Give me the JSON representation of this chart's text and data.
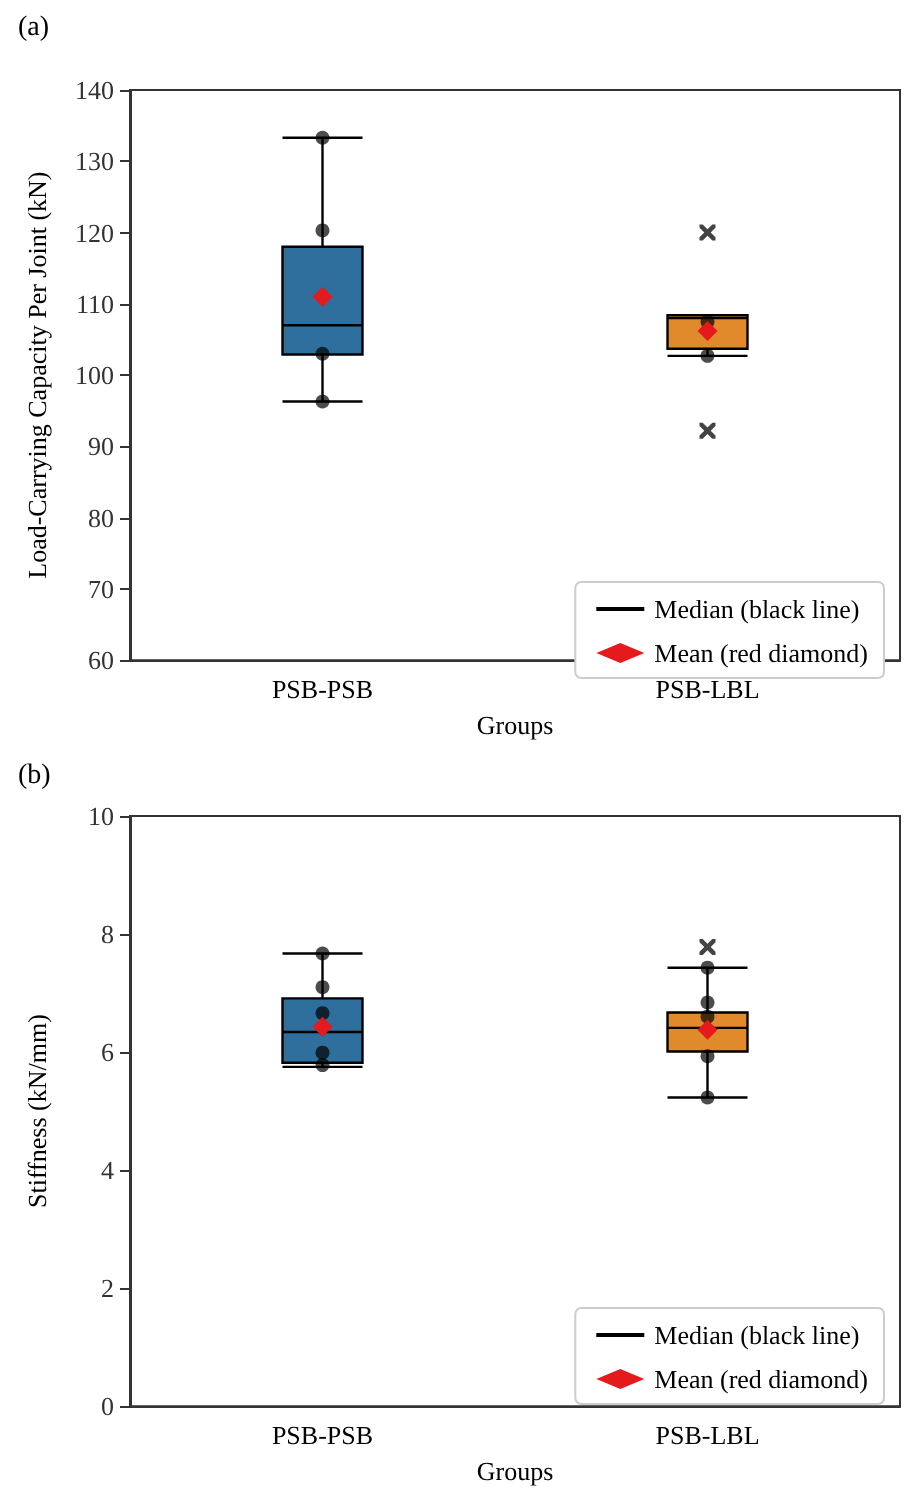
{
  "chart_data": [
    {
      "type": "box",
      "title": "(a)",
      "xlabel": "Groups",
      "ylabel": "Load-Carrying Capacity Per Joint (kN)",
      "categories": [
        "PSB-PSB",
        "PSB-LBL"
      ],
      "ylim": [
        60,
        140
      ],
      "yticks": [
        60,
        70,
        80,
        90,
        100,
        110,
        120,
        130,
        140
      ],
      "legend": "bottom right",
      "series": [
        {
          "name": "Median (black line)",
          "color": "#000000",
          "colors": [
            "#2e6f9e",
            "#e08a2c"
          ],
          "boxes": [
            {
              "low": 96.3,
              "q1": 102.9,
              "median": 107,
              "q3": 118,
              "high": 133.3
            },
            {
              "low": 102.7,
              "q1": 103.7,
              "median": 108,
              "q3": 108.4,
              "high": 108.4,
              "outliers": [
                120,
                92.2
              ]
            }
          ]
        },
        {
          "type": "scatter",
          "color": "#000000",
          "x": [
            "PSB-PSB",
            "PSB-PSB",
            "PSB-PSB",
            "PSB-PSB",
            "PSB-LBL",
            "PSB-LBL"
          ],
          "values": [
            133.3,
            120.3,
            103,
            96.3,
            107.5,
            102.7
          ]
        },
        {
          "type": "scatter",
          "name": "Mean (red diamond)",
          "color": "#e41a1c",
          "marker": "diamond",
          "x": [
            "PSB-PSB",
            "PSB-LBL"
          ],
          "values": [
            111,
            106.2
          ]
        }
      ]
    },
    {
      "type": "box",
      "title": "(b)",
      "xlabel": "Groups",
      "ylabel": "Stiffness (kN/mm)",
      "categories": [
        "PSB-PSB",
        "PSB-LBL"
      ],
      "ylim": [
        0,
        10
      ],
      "yticks": [
        0,
        2,
        4,
        6,
        8,
        10
      ],
      "legend": "bottom right",
      "series": [
        {
          "name": "Median (black line)",
          "color": "#000000",
          "colors": [
            "#2e6f9e",
            "#e08a2c"
          ],
          "boxes": [
            {
              "low": 5.75,
              "q1": 5.82,
              "median": 6.34,
              "q3": 6.91,
              "high": 7.67
            },
            {
              "low": 5.23,
              "q1": 6.01,
              "median": 6.41,
              "q3": 6.67,
              "high": 7.43,
              "outliers": [
                7.78
              ]
            }
          ]
        },
        {
          "type": "scatter",
          "color": "#000000",
          "x": [
            "PSB-PSB",
            "PSB-PSB",
            "PSB-PSB",
            "PSB-PSB",
            "PSB-PSB",
            "PSB-LBL",
            "PSB-LBL",
            "PSB-LBL",
            "PSB-LBL",
            "PSB-LBL"
          ],
          "values": [
            7.67,
            7.1,
            6.66,
            5.99,
            5.78,
            7.43,
            6.84,
            6.6,
            5.93,
            5.23
          ]
        },
        {
          "type": "scatter",
          "name": "Mean (red diamond)",
          "color": "#e41a1c",
          "marker": "diamond",
          "x": [
            "PSB-PSB",
            "PSB-LBL"
          ],
          "values": [
            6.43,
            6.38
          ]
        }
      ]
    }
  ]
}
